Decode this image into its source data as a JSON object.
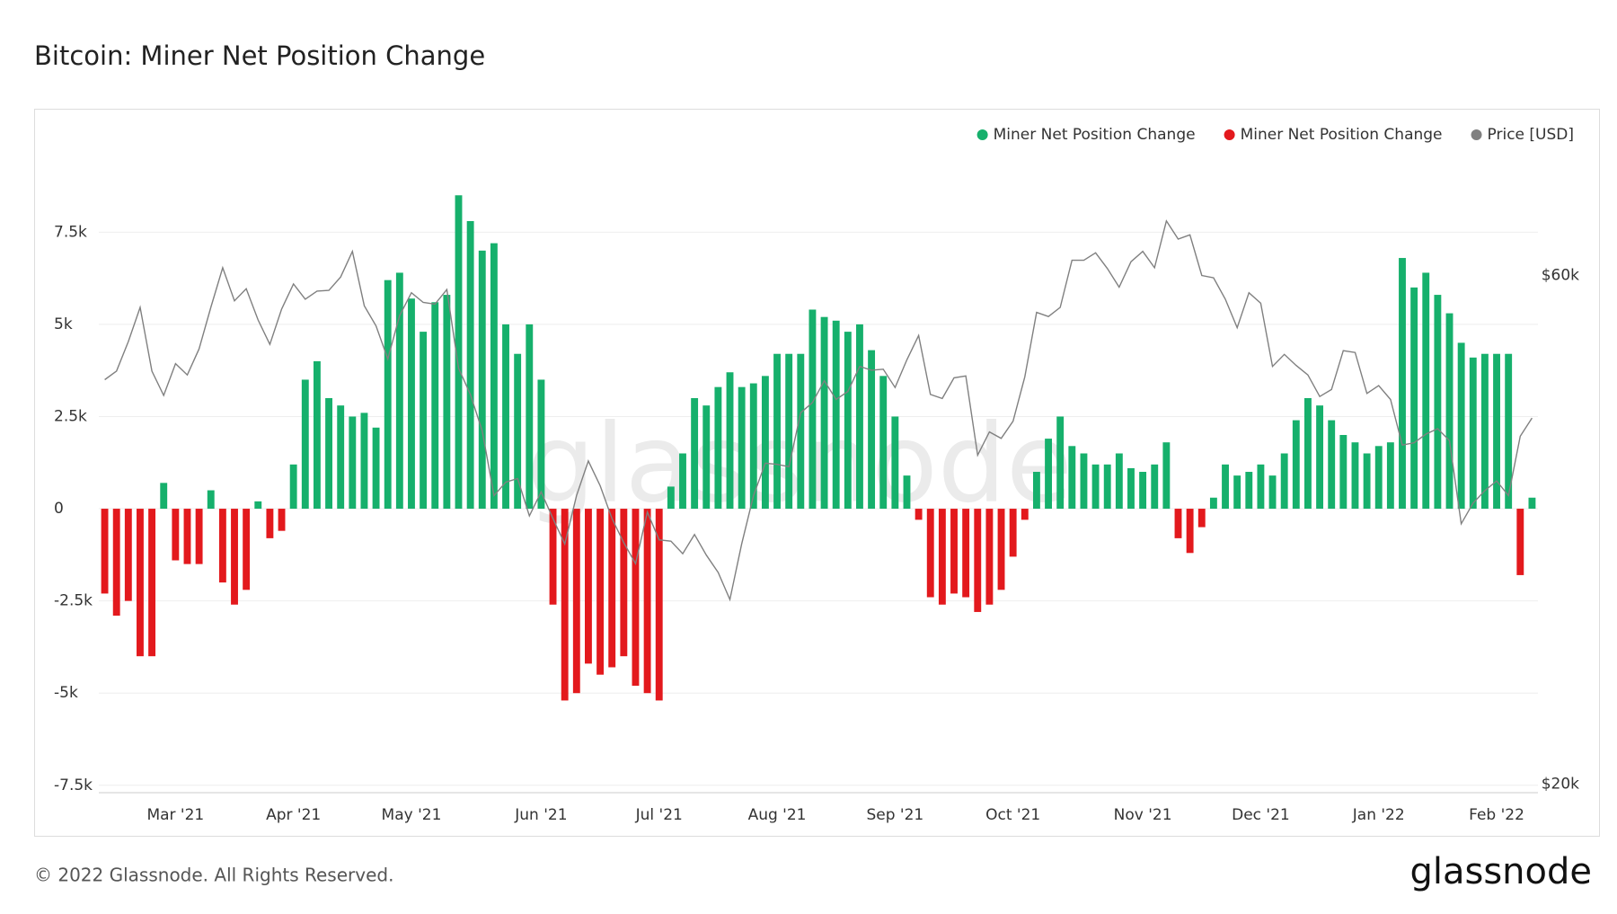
{
  "chart_data": {
    "type": "bar-line",
    "title": "Bitcoin: Miner Net Position Change",
    "watermark": "glassnode",
    "categories": [
      null,
      null,
      null,
      null,
      null,
      null,
      "Mar '21",
      null,
      null,
      null,
      null,
      null,
      null,
      null,
      null,
      null,
      "Apr '21",
      null,
      null,
      null,
      null,
      null,
      null,
      null,
      null,
      null,
      "May '21",
      null,
      null,
      null,
      null,
      null,
      null,
      null,
      null,
      null,
      null,
      "Jun '21",
      null,
      null,
      null,
      null,
      null,
      null,
      null,
      null,
      null,
      "Jul '21",
      null,
      null,
      null,
      null,
      null,
      null,
      null,
      null,
      null,
      "Aug '21",
      null,
      null,
      null,
      null,
      null,
      null,
      null,
      null,
      null,
      "Sep '21",
      null,
      null,
      null,
      null,
      null,
      null,
      null,
      null,
      null,
      "Oct '21",
      null,
      null,
      null,
      null,
      null,
      null,
      null,
      null,
      null,
      null,
      "Nov '21",
      null,
      null,
      null,
      null,
      null,
      null,
      null,
      null,
      null,
      "Dec '21",
      null,
      null,
      null,
      null,
      null,
      null,
      null,
      null,
      null,
      "Jan '22",
      null,
      null,
      null,
      null,
      null,
      null,
      null,
      null,
      null,
      "Feb '22",
      null,
      null,
      null
    ],
    "series": [
      {
        "name": "Miner Net Position Change",
        "color": "#16b06c",
        "values": [
          null,
          null,
          null,
          null,
          null,
          700,
          null,
          null,
          null,
          500,
          null,
          null,
          null,
          200,
          null,
          null,
          1200,
          3500,
          4000,
          3000,
          2800,
          2500,
          2600,
          2200,
          6200,
          6400,
          5700,
          4800,
          5600,
          5800,
          8500,
          7800,
          7000,
          7200,
          5000,
          4200,
          5000,
          3500,
          null,
          null,
          null,
          null,
          null,
          null,
          null,
          null,
          null,
          null,
          600,
          1500,
          3000,
          2800,
          3300,
          3700,
          3300,
          3400,
          3600,
          4200,
          4200,
          4200,
          5400,
          5200,
          5100,
          4800,
          5000,
          4300,
          3600,
          2500,
          900,
          null,
          null,
          null,
          null,
          null,
          null,
          null,
          null,
          null,
          null,
          1000,
          1900,
          2500,
          1700,
          1500,
          1200,
          1200,
          1500,
          1100,
          1000,
          1200,
          1800,
          null,
          null,
          null,
          300,
          1200,
          900,
          1000,
          1200,
          900,
          1500,
          2400,
          3000,
          2800,
          2400,
          2000,
          1800,
          1500,
          1700,
          1800,
          6800,
          6000,
          6400,
          5800,
          5300,
          4500,
          4100,
          4200,
          4200,
          4200,
          null,
          300
        ]
      },
      {
        "name": "Miner Net Position Change",
        "color": "#e3191d",
        "values": [
          -2300,
          -2900,
          -2500,
          -4000,
          -4000,
          null,
          -1400,
          -1500,
          -1500,
          null,
          -2000,
          -2600,
          -2200,
          null,
          -800,
          -600,
          null,
          null,
          null,
          null,
          null,
          null,
          null,
          null,
          null,
          null,
          null,
          null,
          null,
          null,
          null,
          null,
          null,
          null,
          null,
          null,
          null,
          null,
          -2600,
          -5200,
          -5000,
          -4200,
          -4500,
          -4300,
          -4000,
          -4800,
          -5000,
          -5200,
          null,
          null,
          null,
          null,
          null,
          null,
          null,
          null,
          null,
          null,
          null,
          null,
          null,
          null,
          null,
          null,
          null,
          null,
          null,
          null,
          null,
          -300,
          -2400,
          -2600,
          -2300,
          -2400,
          -2800,
          -2600,
          -2200,
          -1300,
          -300,
          null,
          null,
          null,
          null,
          null,
          null,
          null,
          null,
          null,
          null,
          null,
          null,
          -800,
          -1200,
          -500,
          null,
          null,
          null,
          null,
          null,
          null,
          null,
          null,
          null,
          null,
          null,
          null,
          null,
          null,
          null,
          null,
          null,
          null,
          null,
          null,
          null,
          null,
          null,
          null,
          null,
          null,
          -1800,
          null
        ]
      },
      {
        "name": "Price [USD]",
        "color": "#808080",
        "axis": "y2",
        "values": [
          47900,
          48800,
          52000,
          56000,
          48800,
          46300,
          49600,
          48400,
          51200,
          56000,
          61000,
          56800,
          58300,
          54500,
          51700,
          55800,
          58900,
          57000,
          58000,
          58100,
          59800,
          63200,
          56200,
          53800,
          50100,
          55000,
          57800,
          56600,
          56400,
          58200,
          49100,
          46400,
          42900,
          37300,
          38400,
          38700,
          35700,
          37600,
          35500,
          33600,
          37300,
          40200,
          38100,
          35500,
          33700,
          32200,
          36000,
          33900,
          33800,
          32900,
          34300,
          32800,
          31600,
          29800,
          33600,
          37300,
          40000,
          39900,
          39700,
          44600,
          45600,
          47800,
          45900,
          46700,
          49300,
          48900,
          49000,
          47100,
          50000,
          52700,
          46400,
          46000,
          48100,
          48300,
          40700,
          42800,
          42200,
          43800,
          48200,
          55400,
          54900,
          56000,
          62000,
          62000,
          63000,
          60900,
          58500,
          61800,
          63200,
          61000,
          67500,
          64900,
          65500,
          60000,
          59700,
          57000,
          53600,
          57800,
          56500,
          49300,
          50600,
          49400,
          48400,
          46200,
          46900,
          51000,
          50800,
          46500,
          47300,
          45900,
          41600,
          41800,
          42600,
          43100,
          42000,
          35100,
          36700,
          37700,
          38500,
          37300,
          42400,
          44100
        ]
      }
    ],
    "ylim": [
      -7700,
      9750
    ],
    "yticks": [
      {
        "value": -7500,
        "label": "-7.5k"
      },
      {
        "value": -5000,
        "label": "-5k"
      },
      {
        "value": -2500,
        "label": "-2.5k"
      },
      0,
      {
        "value": 2500,
        "label": "2.5k"
      },
      {
        "value": 5000,
        "label": "5k"
      },
      {
        "value": 7500,
        "label": "7.5k"
      }
    ],
    "y2lim": [
      19640,
      78800
    ],
    "y2ticks": [
      {
        "value": 20000,
        "label": "$20k"
      },
      {
        "value": 60000,
        "label": "$60k"
      }
    ],
    "y2log": true,
    "grid": true,
    "legend": "top-right"
  },
  "footer": {
    "copyright": "© 2022 Glassnode. All Rights Reserved.",
    "logo": "glassnode"
  }
}
